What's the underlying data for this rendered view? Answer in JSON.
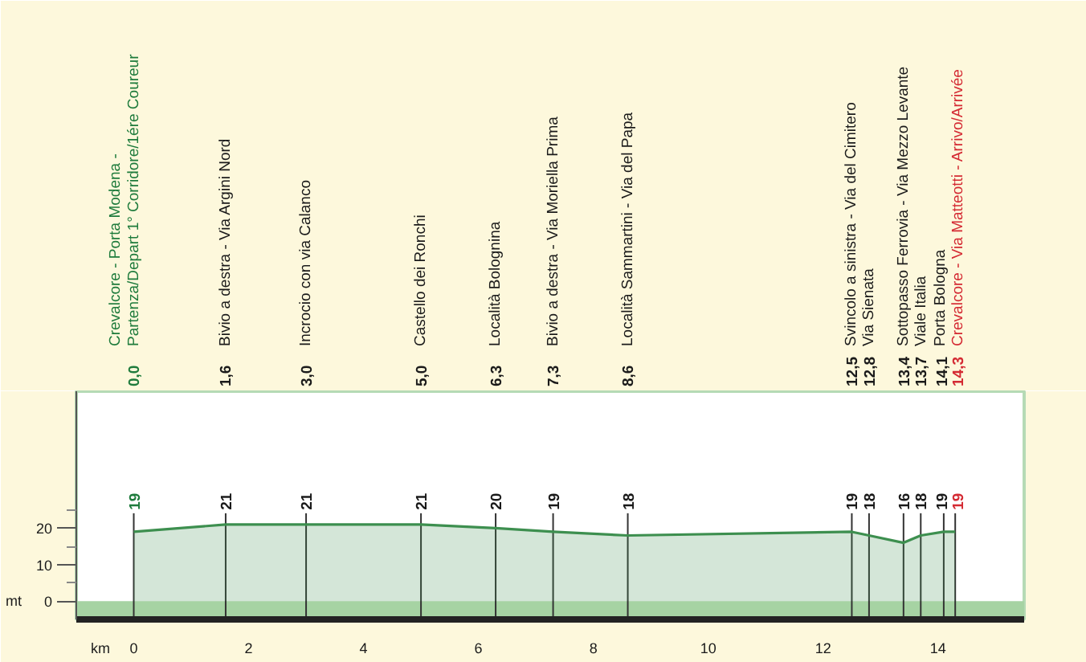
{
  "chart_data": {
    "type": "area",
    "xlabel": "km",
    "ylabel": "mt",
    "x": [
      0,
      1.6,
      3.0,
      5.0,
      6.3,
      7.3,
      8.6,
      12.5,
      12.8,
      13.4,
      13.7,
      14.1,
      14.3
    ],
    "series": [
      {
        "color": "#3d8f4f",
        "values": [
          19,
          21,
          21,
          21,
          20,
          19,
          18,
          19,
          18,
          16,
          18,
          19,
          19
        ]
      }
    ],
    "data_labels": true,
    "xlim": [
      -1,
      15.5
    ],
    "xticks": [
      0,
      2,
      4,
      6,
      8,
      10,
      12,
      14
    ],
    "ylim": [
      -5,
      57.5
    ],
    "yticks": [
      0,
      {
        "value": 5,
        "label": null
      },
      10,
      {
        "value": 15,
        "label": null
      },
      20,
      {
        "value": 25,
        "label": null
      }
    ],
    "x2lim": [
      -2.25,
      16.65
    ],
    "x2ticks": [
      {
        "value": 0,
        "label": "0,0"
      },
      {
        "value": 1.6,
        "label": "1,6"
      },
      {
        "value": 3.0,
        "label": "3,0"
      },
      {
        "value": 5.0,
        "label": "5,0"
      },
      {
        "value": 6.3,
        "label": "6,3"
      },
      {
        "value": 7.3,
        "label": "7,3"
      },
      {
        "value": 8.6,
        "label": "8,6"
      },
      {
        "value": 12.5,
        "label": "12,5"
      },
      {
        "value": 12.8,
        "label": "12,8"
      },
      {
        "value": 13.4,
        "label": "13,4"
      },
      {
        "value": 13.7,
        "label": "13,7"
      },
      {
        "value": 14.1,
        "label": "14,1"
      },
      {
        "value": 14.3,
        "label": "14,3"
      }
    ],
    "annotations": [
      "Crevalcore - Porta Modena -\nPartenza/Depart   1° Corridore/1ére Coureur",
      "Bivio a destra - Via Argini Nord",
      "Incrocio con via Calanco",
      "Castello dei Ronchi",
      "Località Bolognina",
      "Bivio a destra - Via Moriella Prima",
      "Località Sammartini - Via del Papa",
      "Svincolo a sinistra - Via del Cimitero",
      "Via Sienata",
      "Sottopasso Ferrovia - Via Mezzo Levante",
      "Viale Italia",
      "Porta Bologna",
      "Crevalcore - Via Matteotti - Arrivo/Arrivée"
    ],
    "ref_lines": [
      {
        "axis": "x",
        "value": 0,
        "color": "#333333"
      },
      {
        "axis": "x",
        "value": 1.6,
        "color": "#333333"
      },
      {
        "axis": "x",
        "value": 3.0,
        "color": "#333333"
      },
      {
        "axis": "x",
        "value": 5.0,
        "color": "#333333"
      },
      {
        "axis": "x",
        "value": 6.3,
        "color": "#333333"
      },
      {
        "axis": "x",
        "value": 7.3,
        "color": "#333333"
      },
      {
        "axis": "x",
        "value": 8.6,
        "color": "#333333"
      },
      {
        "axis": "x",
        "value": 12.5,
        "color": "#333333"
      },
      {
        "axis": "x",
        "value": 12.8,
        "color": "#333333"
      },
      {
        "axis": "x",
        "value": 13.4,
        "color": "#333333"
      },
      {
        "axis": "x",
        "value": 13.7,
        "color": "#333333"
      },
      {
        "axis": "x",
        "value": 14.1,
        "color": "#333333"
      },
      {
        "axis": "x",
        "value": 14.3,
        "color": "#333333"
      }
    ],
    "bands": [
      {
        "axis": "y",
        "from": -5,
        "to": 0,
        "color": "#a6d3a3"
      }
    ]
  }
}
